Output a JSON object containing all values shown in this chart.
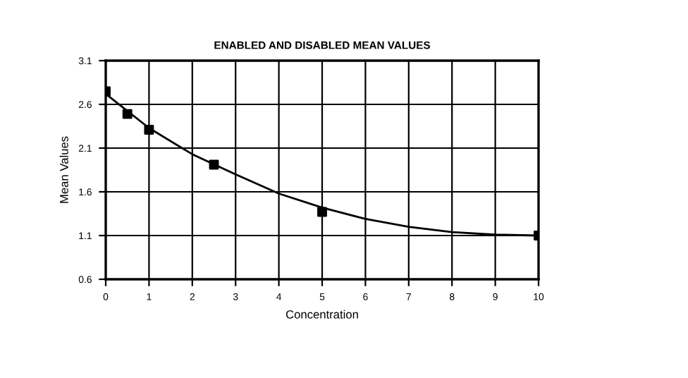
{
  "chart_data": {
    "type": "scatter",
    "title": "ENABLED AND DISABLED MEAN VALUES",
    "xlabel": "Concentration",
    "ylabel": "Mean Values",
    "series": [
      {
        "color": "#000000",
        "marker": "square",
        "x": [
          0,
          0.5,
          1,
          2.5,
          5,
          10
        ],
        "values": [
          2.75,
          2.49,
          2.31,
          1.91,
          1.37,
          1.1
        ]
      },
      {
        "type": "line",
        "color": "#000000",
        "marker": "none",
        "line_style": "solid",
        "x": [
          0,
          1,
          2,
          3,
          4,
          5,
          6,
          7,
          8,
          9,
          10
        ],
        "values": [
          2.72,
          2.33,
          2.03,
          1.8,
          1.58,
          1.42,
          1.29,
          1.2,
          1.14,
          1.11,
          1.1
        ]
      }
    ],
    "xlim": [
      0,
      10
    ],
    "xticks": [
      0,
      1,
      2,
      3,
      4,
      5,
      6,
      7,
      8,
      9,
      10
    ],
    "ylim": [
      0.6,
      3.1
    ],
    "yticks": [
      0.6,
      1.1,
      1.6,
      2.1,
      2.6,
      3.1
    ],
    "grid": true
  }
}
